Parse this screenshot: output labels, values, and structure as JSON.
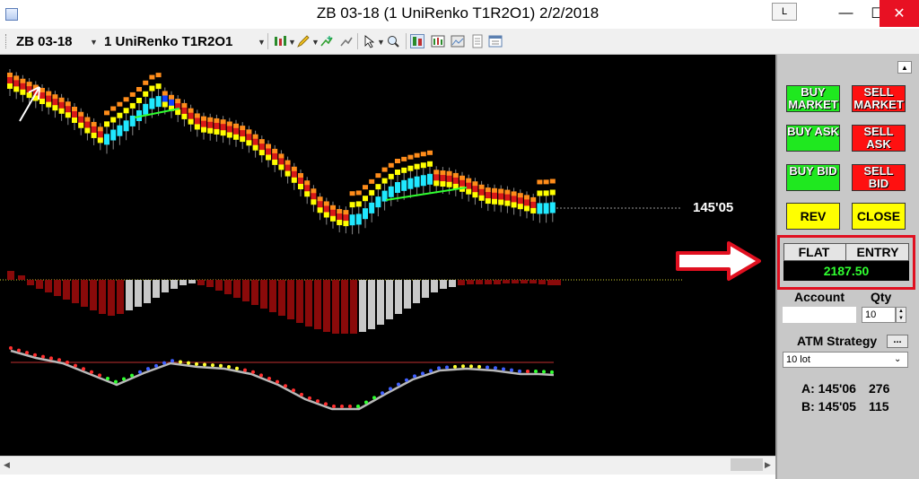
{
  "window": {
    "title": "ZB 03-18 (1 UniRenko T1R2O1)  2/2/2018",
    "btn_l": "L",
    "minimize": "—",
    "maximize": "☐",
    "close": "✕"
  },
  "toolbar": {
    "instrument": "ZB 03-18",
    "bar_type": "1 UniRenko T1R2O1"
  },
  "chart": {
    "price_label": "145'05"
  },
  "chart_data": {
    "type": "candlestick",
    "price_label": "145'05",
    "current_price_label": "145'05",
    "panels": [
      "price (UniRenko bars with moving averages)",
      "histogram oscillator",
      "smoothed oscillator with colored dots"
    ]
  },
  "panel": {
    "buy_market": "BUY MARKET",
    "sell_market": "SELL MARKET",
    "buy_ask": "BUY ASK",
    "sell_ask": "SELL ASK",
    "buy_bid": "BUY BID",
    "sell_bid": "SELL BID",
    "rev": "REV",
    "close": "CLOSE",
    "position": "FLAT",
    "entry": "ENTRY",
    "pnl": "2187.50",
    "account_label": "Account",
    "qty_label": "Qty",
    "qty_value": "10",
    "atm_label": "ATM Strategy",
    "atm_button": "...",
    "atm_value": "10 lot",
    "ask_label": "A: 145'06",
    "ask_size": "276",
    "bid_label": "B: 145'05",
    "bid_size": "115"
  },
  "colors": {
    "buy": "#1fe81f",
    "sell": "#ff1010",
    "neutral": "#ffff00",
    "pnl": "#30ff30",
    "highlight": "#e01020"
  }
}
